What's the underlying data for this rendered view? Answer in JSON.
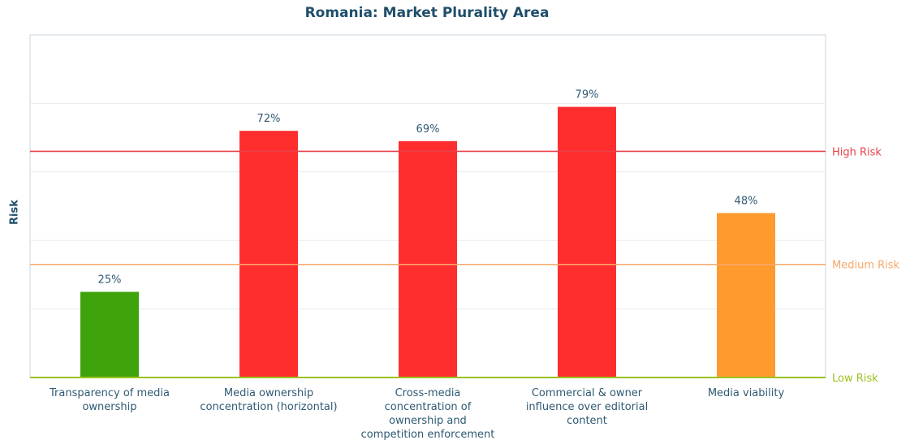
{
  "chart_data": {
    "type": "bar",
    "title": "Romania: Market Plurality Area",
    "xlabel": "",
    "ylabel": "Risk",
    "ylim": [
      0,
      100
    ],
    "categories": [
      [
        "Transparency of media",
        "ownership"
      ],
      [
        "Media ownership",
        "concentration (horizontal)"
      ],
      [
        "Cross-media",
        "concentration of",
        "ownership and",
        "competition enforcement"
      ],
      [
        "Commercial & owner",
        "influence over editorial",
        "content"
      ],
      [
        "Media viability"
      ]
    ],
    "values": [
      25,
      72,
      69,
      79,
      48
    ],
    "value_labels": [
      "25%",
      "72%",
      "69%",
      "79%",
      "48%"
    ],
    "bar_colors": [
      "#3fa30b",
      "#ff2e2e",
      "#ff2e2e",
      "#ff2e2e",
      "#ff9a2e"
    ],
    "reference_lines": [
      {
        "label": "High Risk",
        "value": 66,
        "color": "#e8424a"
      },
      {
        "label": "Medium Risk",
        "value": 33,
        "color": "#f7a86a"
      },
      {
        "label": "Low Risk",
        "value": 0,
        "color": "#9bc21f"
      }
    ],
    "grid": true
  }
}
